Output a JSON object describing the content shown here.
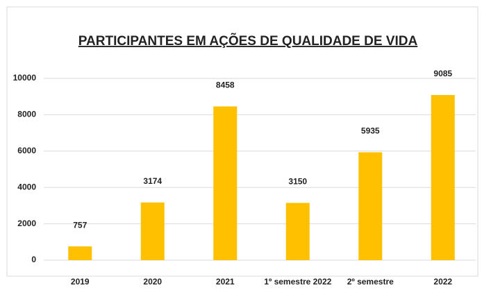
{
  "chart_data": {
    "type": "bar",
    "title": "PARTICIPANTES EM AÇÕES DE QUALIDADE DE VIDA",
    "categories": [
      "2019",
      "2020",
      "2021",
      "1º semestre 2022",
      "2º semestre",
      "2022"
    ],
    "values": [
      757,
      3174,
      8458,
      3150,
      5935,
      9085
    ],
    "color": "#ffc000",
    "ylim": [
      0,
      10000
    ],
    "yticks": [
      0,
      2000,
      4000,
      6000,
      8000,
      10000
    ],
    "grid": true
  }
}
